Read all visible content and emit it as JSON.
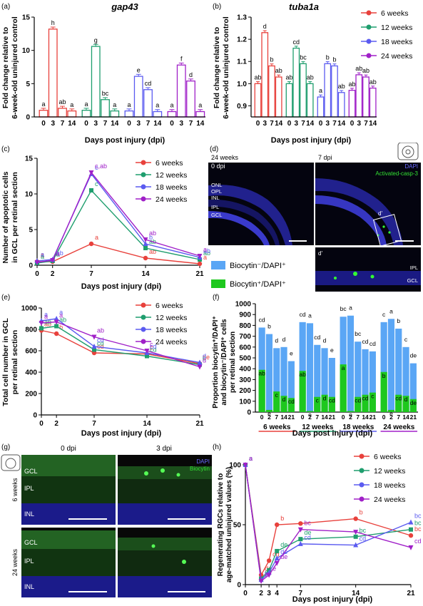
{
  "colors": {
    "w6": "#e8413c",
    "w12": "#1f9e6e",
    "w18": "#5b5bf0",
    "w24": "#a020c8",
    "blue_bar": "#5aa6f5",
    "green_bar": "#1ec81e",
    "dapi": "#2a2aa0",
    "biocytin": "#2ad42a"
  },
  "legend_weeks": [
    "6 weeks",
    "12 weeks",
    "18 weeks",
    "24 weeks"
  ],
  "panels": {
    "a": {
      "label": "(a)",
      "title": "gap43",
      "ylabel": [
        "Fold change relative to",
        "6-week-old uninjured control"
      ],
      "xlabel": "Days post injury (dpi)"
    },
    "b": {
      "label": "(b)",
      "title": "tuba1a",
      "ylabel": [
        "Fold change relative to",
        "6-week-old uninjured control"
      ],
      "xlabel": "Days post injury (dpi)"
    },
    "c": {
      "label": "(c)",
      "ylabel": [
        "Number of apoptotic cells",
        "in GCL per retinal section"
      ],
      "xlabel": "Days post injury (dpi)"
    },
    "d": {
      "label": "(d)",
      "left_title": [
        "24 weeks",
        "0 dpi"
      ],
      "right_title": "7 dpi",
      "layers": [
        "ONL",
        "OPL",
        "INL",
        "IPL",
        "GCL"
      ],
      "stain": "Activated-casp-3",
      "dapi": "DAPI",
      "inset": "d'",
      "inset_layers": [
        "IPL",
        "GCL"
      ]
    },
    "e": {
      "label": "(e)",
      "ylabel": [
        "Total cell number in GCL",
        "per retinal section"
      ],
      "xlabel": "Days post injury (dpi)"
    },
    "f": {
      "label": "(f)",
      "ylabel": [
        "Proportion biocytin⁺/DAPI⁺",
        "and biocytin⁻/DAPI⁺ cells",
        "per retinal section"
      ],
      "xlabel": "Days post injury (dpi)",
      "legend": [
        "Biocytin⁻/DAPI⁺",
        "Biocytin⁺/DAPI⁺"
      ]
    },
    "g": {
      "label": "(g)",
      "col_titles": [
        "0 dpi",
        "3 dpi"
      ],
      "row_titles": [
        "6 weeks",
        "24 weeks"
      ],
      "layers": [
        "GCL",
        "IPL",
        "INL"
      ],
      "dapi": "DAPI",
      "stain": "Biocytin"
    },
    "h": {
      "label": "(h)",
      "ylabel": [
        "Regenerating RGCs relative to",
        "age-matched uninjured values (%)"
      ],
      "xlabel": "Days post injury (dpi)"
    }
  },
  "chart_data": [
    {
      "id": "a",
      "type": "bar",
      "title": "gap43",
      "x": [
        0,
        3,
        7,
        14
      ],
      "ylim": [
        0,
        15
      ],
      "yticks": [
        0,
        5,
        10,
        15
      ],
      "series": [
        {
          "name": "6 weeks",
          "values": [
            1.0,
            13.2,
            1.3,
            0.9
          ],
          "letters": [
            "a",
            "h",
            "ab",
            "a"
          ]
        },
        {
          "name": "12 weeks",
          "values": [
            1.0,
            10.6,
            2.6,
            0.9
          ],
          "letters": [
            "a",
            "g",
            "bc",
            "a"
          ]
        },
        {
          "name": "18 weeks",
          "values": [
            0.9,
            6.1,
            4.1,
            0.8
          ],
          "letters": [
            "a",
            "e",
            "cd",
            "a"
          ]
        },
        {
          "name": "24 weeks",
          "values": [
            0.8,
            7.8,
            5.4,
            0.8
          ],
          "letters": [
            "a",
            "f",
            "d",
            "a"
          ]
        }
      ]
    },
    {
      "id": "b",
      "type": "bar",
      "title": "tuba1a",
      "x": [
        0,
        3,
        7,
        14
      ],
      "ylim": [
        0.85,
        1.3
      ],
      "yticks": [
        0.9,
        1.0,
        1.1,
        1.2,
        1.3
      ],
      "series": [
        {
          "name": "6 weeks",
          "values": [
            1.0,
            1.23,
            1.08,
            1.03
          ],
          "letters": [
            "ab",
            "d",
            "b",
            "ab"
          ]
        },
        {
          "name": "12 weeks",
          "values": [
            1.0,
            1.16,
            1.09,
            1.0
          ],
          "letters": [
            "ab",
            "cd",
            "bc",
            "ab"
          ]
        },
        {
          "name": "18 weeks",
          "values": [
            0.94,
            1.09,
            1.08,
            0.96
          ],
          "letters": [
            "a",
            "b",
            "b",
            "ab"
          ]
        },
        {
          "name": "24 weeks",
          "values": [
            0.97,
            1.04,
            1.03,
            0.98
          ],
          "letters": [
            "ab",
            "ab",
            "ab",
            "ab"
          ]
        }
      ]
    },
    {
      "id": "c",
      "type": "line",
      "x": [
        0,
        2,
        7,
        14,
        21
      ],
      "ylim": [
        0,
        15
      ],
      "yticks": [
        0,
        5,
        10,
        15
      ],
      "xticks": [
        0,
        2,
        7,
        14,
        21
      ],
      "series": [
        {
          "name": "6 weeks",
          "values": [
            0.5,
            0.5,
            3.0,
            1.0,
            0.2
          ],
          "letters": [
            "a",
            "",
            "a",
            "ab",
            "a"
          ]
        },
        {
          "name": "12 weeks",
          "values": [
            0.3,
            0.6,
            10.5,
            2.4,
            0.8
          ],
          "letters": [
            "a",
            "a",
            "c",
            "ab",
            "ab"
          ]
        },
        {
          "name": "18 weeks",
          "values": [
            0.6,
            0.8,
            12.8,
            3.0,
            1.1
          ],
          "letters": [
            "a",
            "ab",
            "c",
            "b",
            "ab"
          ]
        },
        {
          "name": "24 weeks",
          "values": [
            0.4,
            0.7,
            13.0,
            3.6,
            1.3
          ],
          "letters": [
            "",
            "a",
            "c,ab",
            "ab",
            "a"
          ]
        }
      ]
    },
    {
      "id": "e",
      "type": "line",
      "x": [
        0,
        2,
        7,
        14,
        21
      ],
      "ylim": [
        0,
        1000
      ],
      "yticks": [
        0,
        200,
        400,
        600,
        800,
        1000
      ],
      "xticks": [
        0,
        2,
        7,
        14,
        21
      ],
      "series": [
        {
          "name": "6 weeks",
          "values": [
            790,
            760,
            580,
            570,
            480
          ],
          "letters": [
            "ab",
            "b",
            "cd",
            "c",
            "de"
          ]
        },
        {
          "name": "12 weeks",
          "values": [
            810,
            830,
            610,
            550,
            470
          ],
          "letters": [
            "ab",
            "ab",
            "cd",
            "cd",
            "d"
          ]
        },
        {
          "name": "18 weeks",
          "values": [
            880,
            900,
            640,
            580,
            490
          ],
          "letters": [
            "a",
            "a",
            "cd",
            "cd",
            "d"
          ]
        },
        {
          "name": "24 weeks",
          "values": [
            860,
            870,
            730,
            600,
            450
          ],
          "letters": [
            "a",
            "a",
            "ab",
            "c",
            "d"
          ]
        }
      ]
    },
    {
      "id": "f",
      "type": "bar",
      "stacked": true,
      "groups": [
        "6 weeks",
        "12 weeks",
        "18 weeks",
        "24 weeks"
      ],
      "x": [
        0,
        2,
        7,
        14,
        21
      ],
      "ylim": [
        0,
        1000
      ],
      "yticks": [
        0,
        100,
        200,
        300,
        400,
        500,
        600,
        700,
        800,
        900,
        1000
      ],
      "series": [
        {
          "name": "Biocytin⁻/DAPI⁺",
          "values": [
            [
              780,
              720,
              590,
              600,
              470
            ],
            [
              830,
              820,
              620,
              590,
              500
            ],
            [
              880,
              890,
              650,
              580,
              560
            ],
            [
              830,
              860,
              770,
              600,
              450
            ]
          ],
          "letters": [
            [
              "cd",
              "b",
              "d",
              "d",
              "e"
            ],
            [
              "cd",
              "a",
              "cd",
              "d",
              "e"
            ],
            [
              "bc",
              "a",
              "bc",
              "cd",
              "cd"
            ],
            [
              "c",
              "a",
              "b",
              "c",
              "de"
            ]
          ]
        },
        {
          "name": "Biocytin⁺/DAPI⁺",
          "values": [
            [
              390,
              20,
              190,
              150,
              130
            ],
            [
              380,
              10,
              140,
              160,
              140
            ],
            [
              440,
              10,
              140,
              160,
              180
            ],
            [
              370,
              20,
              160,
              150,
              120
            ]
          ],
          "letters": [
            [
              "ab",
              "e",
              "c",
              "d",
              "cd"
            ],
            [
              "ab",
              "e",
              "c",
              "d",
              "cd"
            ],
            [
              "a",
              "e",
              "cd",
              "cd",
              "c"
            ],
            [
              "b",
              "e",
              "cd",
              "d",
              "de"
            ]
          ]
        }
      ]
    },
    {
      "id": "h",
      "type": "line",
      "x": [
        0,
        2,
        3,
        4,
        7,
        14,
        21
      ],
      "ylim": [
        0,
        100
      ],
      "yticks": [
        0,
        50,
        100
      ],
      "xticks": [
        0,
        2,
        3,
        4,
        7,
        14,
        21
      ],
      "series": [
        {
          "name": "6 weeks",
          "values": [
            100,
            8,
            20,
            50,
            51,
            55,
            41
          ],
          "letters": [
            "a",
            "de",
            "cd",
            "b",
            "",
            "b",
            "bc"
          ]
        },
        {
          "name": "12 weeks",
          "values": [
            100,
            5,
            12,
            28,
            38,
            40,
            46
          ],
          "letters": [
            "a",
            "e",
            "",
            "de",
            "de",
            "bc",
            "bc"
          ]
        },
        {
          "name": "18 weeks",
          "values": [
            100,
            4,
            10,
            22,
            34,
            33,
            52
          ],
          "letters": [
            "a",
            "e",
            "",
            "de",
            "cd",
            "cd",
            "bc"
          ]
        },
        {
          "name": "24 weeks",
          "values": [
            100,
            3,
            8,
            18,
            46,
            44,
            31
          ],
          "letters": [
            "a",
            "e",
            "e",
            "de",
            "bc",
            "",
            "cd"
          ]
        }
      ]
    }
  ]
}
